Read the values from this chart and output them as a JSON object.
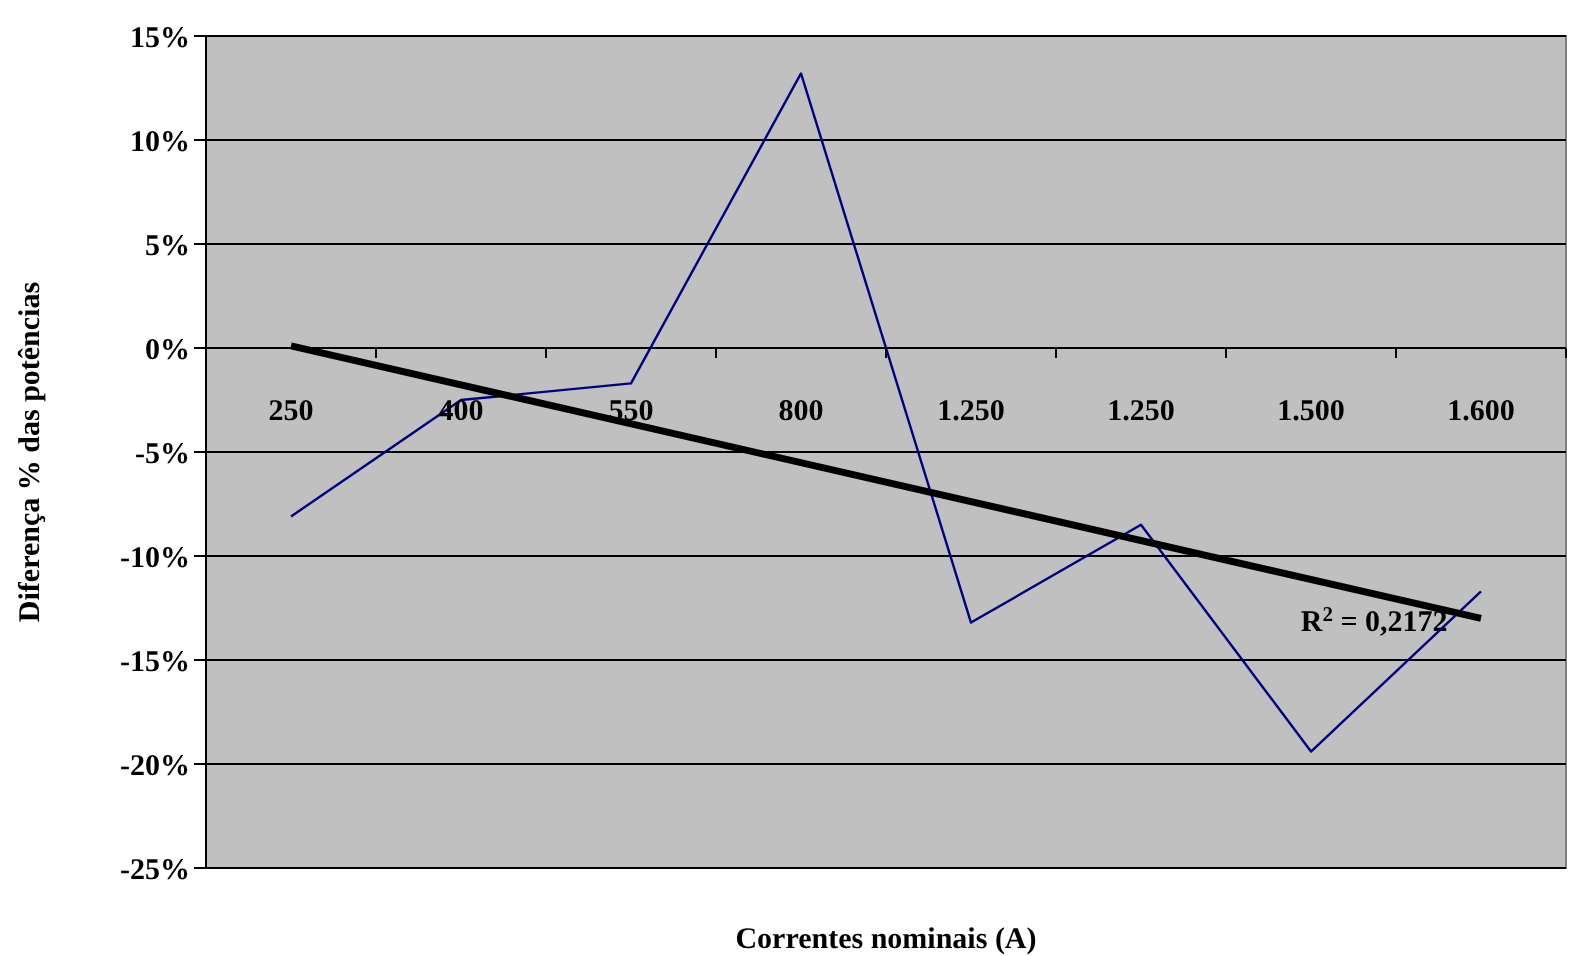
{
  "chart_data": {
    "type": "line",
    "xlabel": "Correntes nominais (A)",
    "ylabel": "Diferença % das potências",
    "categories": [
      "250",
      "400",
      "550",
      "800",
      "1.250",
      "1.250",
      "1.500",
      "1.600"
    ],
    "series": [
      {
        "color": "#000080",
        "values": [
          -8.1,
          -2.5,
          -1.7,
          13.2,
          -13.2,
          -8.5,
          -19.4,
          -11.7
        ]
      },
      {
        "type": "line",
        "color": "#000000",
        "values": [
          0.1,
          null,
          null,
          null,
          null,
          null,
          null,
          -13.0
        ]
      }
    ],
    "ylim": [
      -25,
      15
    ],
    "yticks": [
      {
        "value": -25,
        "label": "-25%"
      },
      {
        "value": -20,
        "label": "-20%"
      },
      {
        "value": -15,
        "label": "-15%"
      },
      {
        "value": -10,
        "label": "-10%"
      },
      {
        "value": -5,
        "label": "-5%"
      },
      {
        "value": 0,
        "label": "0%"
      },
      {
        "value": 5,
        "label": "5%"
      },
      {
        "value": 10,
        "label": "10%"
      },
      {
        "value": 15,
        "label": "15%"
      }
    ],
    "annotations": [
      "R$^{2}$ = 0,2172"
    ],
    "grid": "y",
    "marker": "none"
  }
}
